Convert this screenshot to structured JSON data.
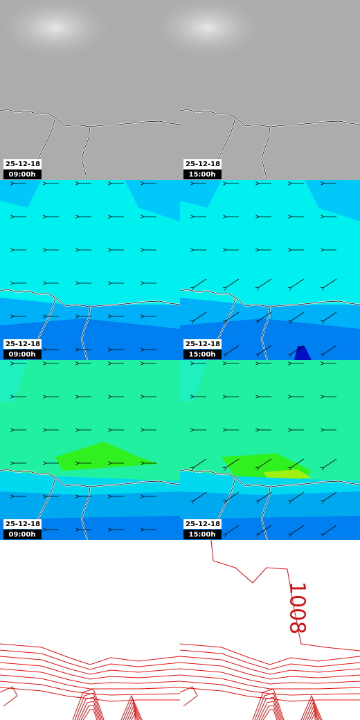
{
  "panels": [
    {
      "date": "25-12-18",
      "time": "09:00h"
    },
    {
      "date": "25-12-18",
      "time": "15:00h"
    },
    {
      "date": "25-12-18",
      "time": "09:00h"
    },
    {
      "date": "25-12-18",
      "time": "15:00h"
    },
    {
      "date": "25-12-18",
      "time": "09:00h"
    },
    {
      "date": "25-12-18",
      "time": "15:00h"
    }
  ],
  "pressure_map": {
    "isobar_label": "1008"
  }
}
